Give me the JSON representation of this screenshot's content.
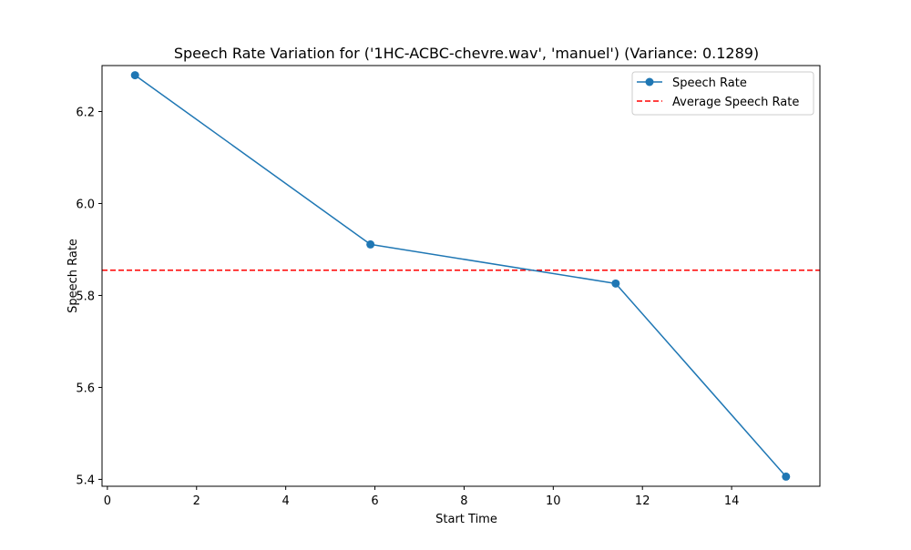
{
  "chart_data": {
    "type": "line",
    "title": "Speech Rate Variation for ('1HC-ACBC-chevre.wav', 'manuel') (Variance: 0.1289)",
    "xlabel": "Start Time",
    "ylabel": "Speech Rate",
    "xlim": [
      -0.12,
      15.98
    ],
    "ylim": [
      5.385,
      6.3
    ],
    "xticks": [
      0,
      2,
      4,
      6,
      8,
      10,
      12,
      14
    ],
    "xtick_labels": [
      "0",
      "2",
      "4",
      "6",
      "8",
      "10",
      "12",
      "14"
    ],
    "yticks": [
      5.4,
      5.6,
      5.8,
      6.0,
      6.2
    ],
    "ytick_labels": [
      "5.4",
      "5.6",
      "5.8",
      "6.0",
      "6.2"
    ],
    "grid": false,
    "legend_position": "top-right",
    "series": [
      {
        "name": "Speech Rate",
        "x": [
          0.62,
          5.9,
          11.4,
          15.22
        ],
        "values": [
          6.279,
          5.911,
          5.826,
          5.406
        ],
        "color": "#1f77b4",
        "marker": "circle"
      }
    ],
    "reference_lines": [
      {
        "name": "Average Speech Rate",
        "y": 5.855,
        "color": "#ff0000",
        "style": "dashed"
      }
    ]
  }
}
